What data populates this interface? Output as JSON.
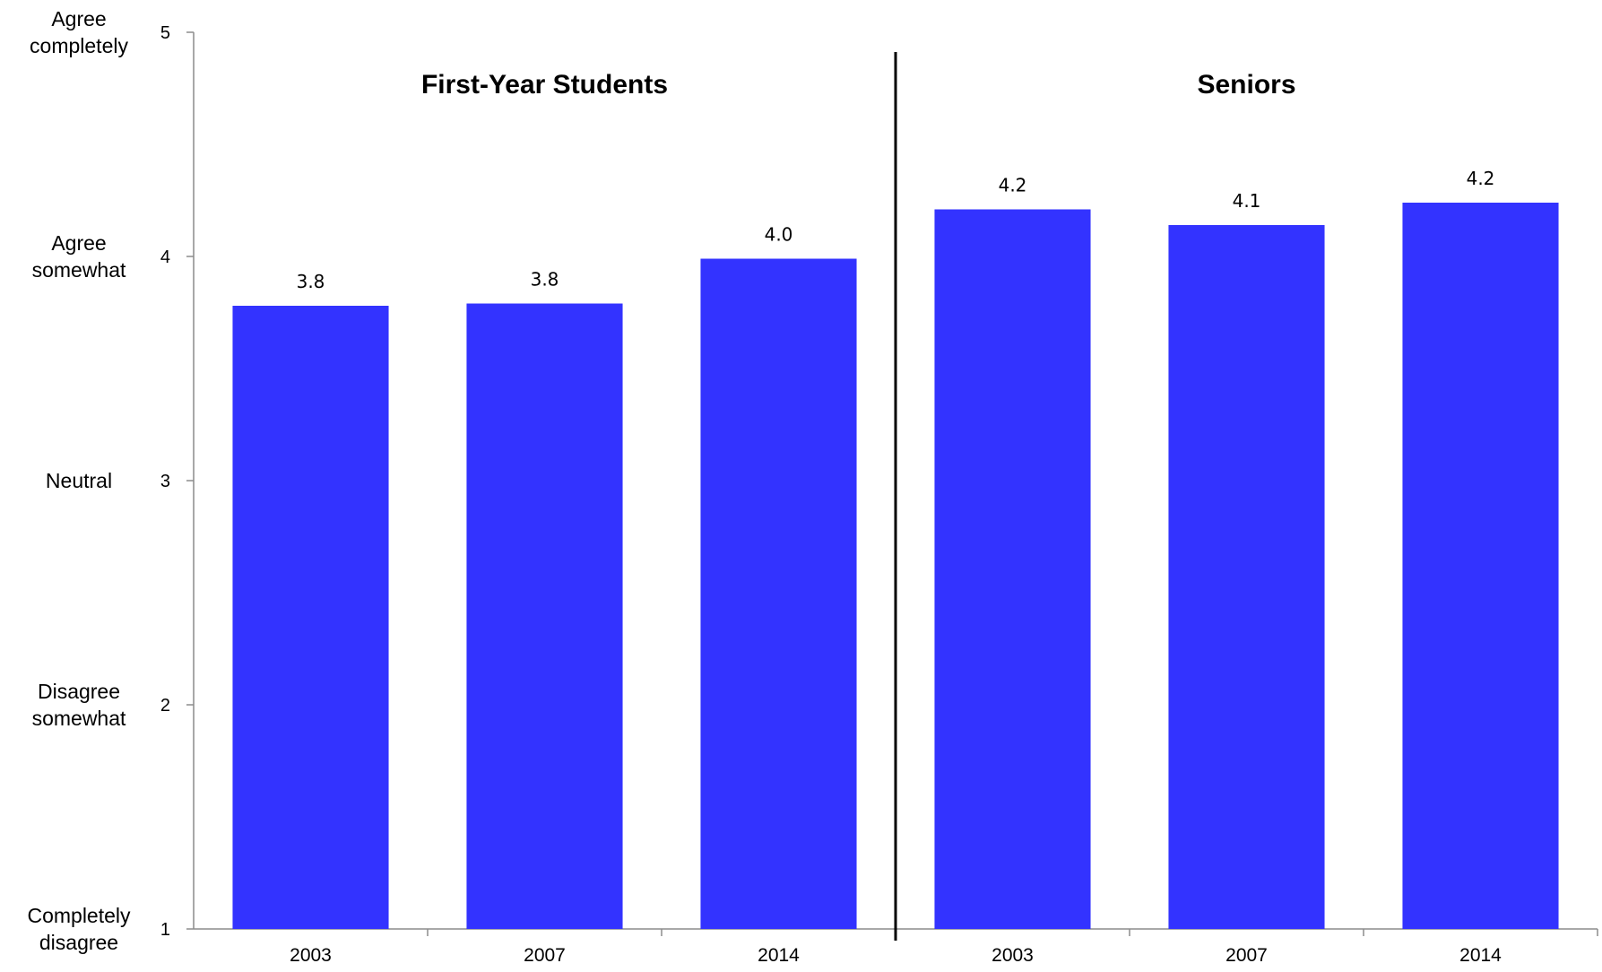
{
  "chart_data": {
    "type": "bar",
    "ylim": [
      1,
      5
    ],
    "yticks": [
      1,
      2,
      3,
      4,
      5
    ],
    "scale_labels": [
      {
        "value": 5,
        "lines": [
          "Agree",
          "completely"
        ]
      },
      {
        "value": 4,
        "lines": [
          "Agree",
          "somewhat"
        ]
      },
      {
        "value": 3,
        "lines": [
          "Neutral"
        ]
      },
      {
        "value": 2,
        "lines": [
          "Disagree",
          "somewhat"
        ]
      },
      {
        "value": 1,
        "lines": [
          "Completely",
          "disagree"
        ]
      }
    ],
    "groups": [
      {
        "title": "First-Year Students",
        "categories": [
          "2003",
          "2007",
          "2014"
        ],
        "values": [
          3.78,
          3.79,
          3.99
        ],
        "labels": [
          "3.8",
          "3.8",
          "4.0"
        ]
      },
      {
        "title": "Seniors",
        "categories": [
          "2003",
          "2007",
          "2014"
        ],
        "values": [
          4.21,
          4.14,
          4.24
        ],
        "labels": [
          "4.2",
          "4.1",
          "4.2"
        ]
      }
    ],
    "bar_color": "#3333ff",
    "grid": false,
    "legend": "none"
  }
}
